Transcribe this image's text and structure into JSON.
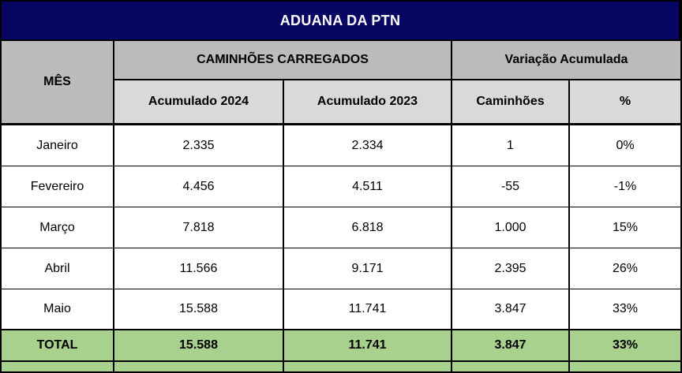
{
  "title": "ADUANA DA PTN",
  "header": {
    "month": "MÊS",
    "groups": [
      "CAMINHÕES CARREGADOS",
      "Variação Acumulada"
    ],
    "subs": [
      "Acumulado 2024",
      "Acumulado 2023",
      "Caminhões",
      "%"
    ]
  },
  "table": {
    "rows": [
      {
        "month": "Janeiro",
        "acc_2024": "2.335",
        "acc_2023": "2.334",
        "caminhoes": "1",
        "pct": "0%"
      },
      {
        "month": "Fevereiro",
        "acc_2024": "4.456",
        "acc_2023": "4.511",
        "caminhoes": "-55",
        "pct": "-1%"
      },
      {
        "month": "Março",
        "acc_2024": "7.818",
        "acc_2023": "6.818",
        "caminhoes": "1.000",
        "pct": "15%"
      },
      {
        "month": "Abril",
        "acc_2024": "11.566",
        "acc_2023": "9.171",
        "caminhoes": "2.395",
        "pct": "26%"
      },
      {
        "month": "Maio",
        "acc_2024": "15.588",
        "acc_2023": "11.741",
        "caminhoes": "3.847",
        "pct": "33%"
      }
    ],
    "total": {
      "label": "TOTAL",
      "acc_2024": "15.588",
      "acc_2023": "11.741",
      "caminhoes": "3.847",
      "pct": "33%"
    }
  },
  "colors": {
    "title_bg": "#070663",
    "title_text": "#ffffff",
    "header_group_bg": "#bcbcbc",
    "header_sub_bg": "#d9d9d9",
    "total_bg": "#a9d18e",
    "row_bg": "#ffffff",
    "border": "#000000"
  },
  "chart_data": {
    "type": "table",
    "title": "ADUANA DA PTN",
    "columns": [
      "MÊS",
      "Acumulado 2024",
      "Acumulado 2023",
      "Caminhões",
      "%"
    ],
    "rows": [
      [
        "Janeiro",
        "2.335",
        "2.334",
        "1",
        "0%"
      ],
      [
        "Fevereiro",
        "4.456",
        "4.511",
        "-55",
        "-1%"
      ],
      [
        "Março",
        "7.818",
        "6.818",
        "1.000",
        "15%"
      ],
      [
        "Abril",
        "11.566",
        "9.171",
        "2.395",
        "26%"
      ],
      [
        "Maio",
        "15.588",
        "11.741",
        "3.847",
        "33%"
      ],
      [
        "TOTAL",
        "15.588",
        "11.741",
        "3.847",
        "33%"
      ]
    ]
  }
}
